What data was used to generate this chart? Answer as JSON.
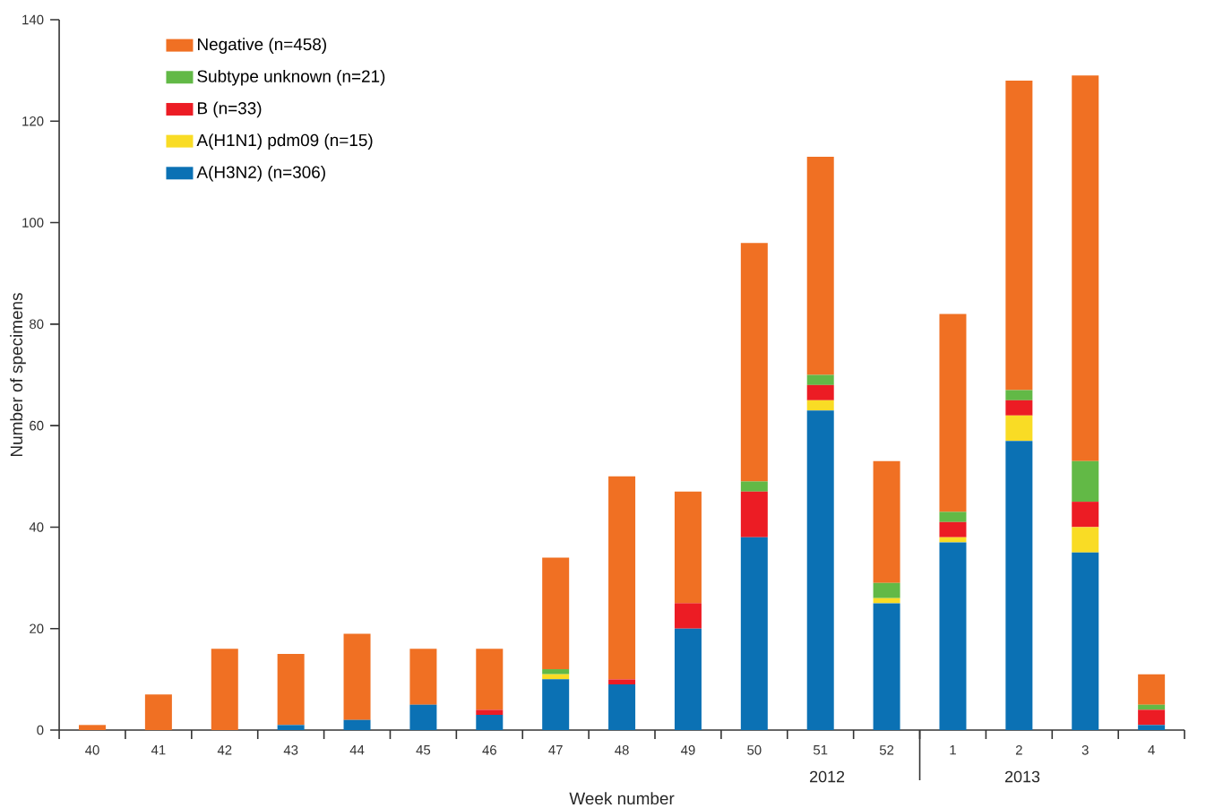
{
  "chart_data": {
    "type": "bar",
    "stacked": true,
    "xlabel": "Week number",
    "ylabel": "Number of specimens",
    "categories": [
      "40",
      "41",
      "42",
      "43",
      "44",
      "45",
      "46",
      "47",
      "48",
      "49",
      "50",
      "51",
      "52",
      "1",
      "2",
      "3",
      "4"
    ],
    "series": [
      {
        "name": "A(H3N2) (n=306)",
        "color": "#0b71b4",
        "values": [
          0,
          0,
          0,
          1,
          2,
          5,
          3,
          10,
          9,
          20,
          38,
          63,
          25,
          37,
          57,
          35,
          1
        ]
      },
      {
        "name": "A(H1N1) pdm09 (n=15)",
        "color": "#f9dc25",
        "values": [
          0,
          0,
          0,
          0,
          0,
          0,
          0,
          1,
          0,
          0,
          0,
          2,
          1,
          1,
          5,
          5,
          0
        ]
      },
      {
        "name": "B (n=33)",
        "color": "#ec1c24",
        "values": [
          0,
          0,
          0,
          0,
          0,
          0,
          1,
          0,
          1,
          5,
          9,
          3,
          0,
          3,
          3,
          5,
          3
        ]
      },
      {
        "name": "Subtype unknown (n=21)",
        "color": "#62b946",
        "values": [
          0,
          0,
          0,
          0,
          0,
          0,
          0,
          1,
          0,
          0,
          2,
          2,
          3,
          2,
          2,
          8,
          1
        ]
      },
      {
        "name": "Negative (n=458)",
        "color": "#f07023",
        "values": [
          1,
          7,
          16,
          14,
          17,
          11,
          12,
          22,
          40,
          22,
          47,
          43,
          24,
          39,
          61,
          76,
          6
        ]
      }
    ],
    "ylim": [
      0,
      140
    ],
    "yticks": [
      0,
      20,
      40,
      60,
      80,
      100,
      120,
      140
    ],
    "annotations": [
      "2012",
      "2013"
    ],
    "legend": "top left",
    "grid": false
  }
}
